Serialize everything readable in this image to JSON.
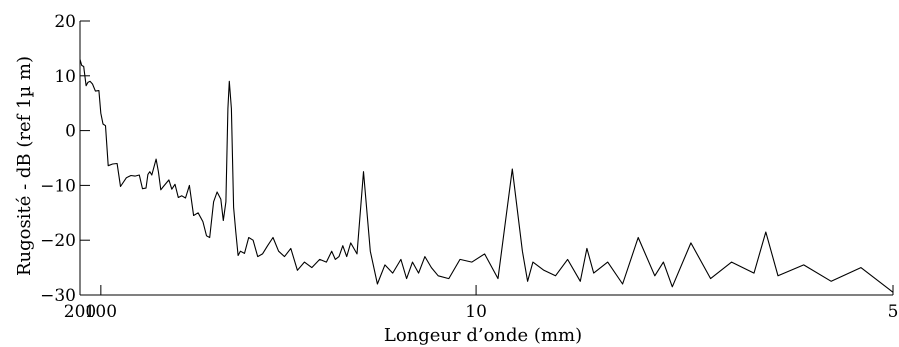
{
  "chart_data": {
    "type": "line",
    "title": "",
    "xlabel": "Longeur d’onde (mm)",
    "ylabel": "Rugosité - dB (ref 1µ m)",
    "x_scale": "reciprocal",
    "xlim": [
      200,
      5
    ],
    "ylim": [
      -30,
      20
    ],
    "grid": false,
    "legend": "none",
    "x_ticks": [
      200,
      100,
      10,
      5
    ],
    "x_tick_labels": [
      "200",
      "100",
      "10",
      "5"
    ],
    "y_ticks": [
      20,
      10,
      0,
      -10,
      -20,
      -30
    ],
    "y_tick_labels": [
      "20",
      "10",
      "0",
      "−10",
      "−20",
      "−30"
    ],
    "line_color": "#000000",
    "series": [
      {
        "x": [
          200,
          185,
          170,
          155,
          145,
          135,
          125,
          115,
          105,
          100,
          95,
          90,
          85,
          78,
          72,
          68,
          62,
          58,
          55,
          52,
          50,
          48,
          47,
          46,
          45,
          43,
          42,
          41,
          40,
          38,
          37,
          36,
          35,
          34,
          33,
          32,
          31,
          30,
          29,
          28.3,
          27.7,
          27.0,
          26.4,
          25.8,
          25.4,
          25.0,
          24.7,
          24.5,
          24.2,
          23.9,
          23.6,
          23.3,
          23.0,
          22.5,
          22.0,
          21.5,
          21.0,
          20.5,
          20.0,
          19.5,
          19.0,
          18.5,
          18.0,
          17.5,
          17.0,
          16.5,
          16.0,
          15.6,
          15.3,
          15.1,
          14.9,
          14.7,
          14.5,
          14.3,
          14.0,
          13.7,
          13.4,
          13.1,
          12.8,
          12.5,
          12.2,
          12.0,
          11.8,
          11.6,
          11.4,
          11.2,
          11.0,
          10.7,
          10.4,
          10.1,
          9.8,
          9.5,
          9.2,
          9.0,
          8.9,
          8.8,
          8.6,
          8.4,
          8.2,
          8.0,
          7.9,
          7.8,
          7.6,
          7.4,
          7.2,
          7.0,
          6.9,
          6.8,
          6.6,
          6.4,
          6.2,
          6.0,
          5.9,
          5.8,
          5.6,
          5.4,
          5.2,
          5.0
        ],
        "y": [
          13,
          11.9,
          11.7,
          8.2,
          8.8,
          9.0,
          8.5,
          7.2,
          7.3,
          3.2,
          1.2,
          0.9,
          -6.4,
          -6.1,
          -6.0,
          -10.2,
          -8.6,
          -8.2,
          -8.3,
          -8.1,
          -10.6,
          -10.5,
          -8.0,
          -7.5,
          -8.1,
          -5.2,
          -7.5,
          -10.8,
          -10.2,
          -9.0,
          -10.7,
          -9.8,
          -12.2,
          -11.9,
          -12.3,
          -10.0,
          -15.5,
          -15.0,
          -16.6,
          -19.2,
          -19.5,
          -13.0,
          -11.2,
          -12.5,
          -16.4,
          -13.0,
          4.0,
          9.0,
          4.0,
          -14.0,
          -18.5,
          -22.8,
          -22.0,
          -22.4,
          -19.5,
          -20.0,
          -23.0,
          -22.5,
          -21.0,
          -19.5,
          -22.0,
          -23.0,
          -21.5,
          -25.5,
          -24.0,
          -25.0,
          -23.5,
          -24.0,
          -22.0,
          -23.5,
          -23.0,
          -21.0,
          -23.0,
          -20.5,
          -22.5,
          -7.5,
          -22.0,
          -28.0,
          -24.5,
          -26.0,
          -23.5,
          -27.0,
          -24.0,
          -26.0,
          -23.0,
          -25.0,
          -26.5,
          -27.0,
          -23.5,
          -24.0,
          -22.5,
          -27.0,
          -7.0,
          -22.0,
          -27.5,
          -24.0,
          -25.5,
          -26.5,
          -23.5,
          -27.5,
          -21.5,
          -26.0,
          -24.0,
          -28.0,
          -19.5,
          -26.5,
          -24.0,
          -28.5,
          -20.5,
          -27.0,
          -24.0,
          -26.0,
          -18.5,
          -26.5,
          -24.5,
          -27.5,
          -25.0,
          -29.5
        ]
      }
    ]
  }
}
